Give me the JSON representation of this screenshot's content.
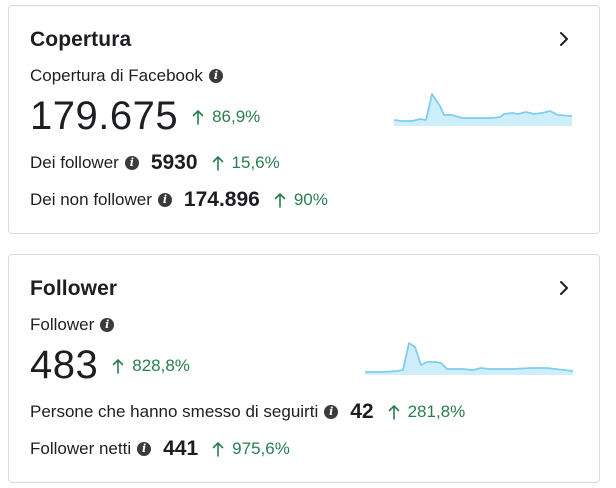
{
  "reach": {
    "title": "Copertura",
    "main_label": "Copertura di Facebook",
    "main_value": "179.675",
    "main_delta": "86,9%",
    "rows": [
      {
        "label": "Dei follower",
        "value": "5930",
        "delta": "15,6%"
      },
      {
        "label": "Dei non follower",
        "value": "174.896",
        "delta": "90%"
      }
    ]
  },
  "followers": {
    "title": "Follower",
    "main_label": "Follower",
    "main_value": "483",
    "main_delta": "828,8%",
    "rows": [
      {
        "label": "Persone che hanno smesso di seguirti",
        "value": "42",
        "delta": "281,8%"
      },
      {
        "label": "Follower netti",
        "value": "441",
        "delta": "975,6%"
      }
    ]
  },
  "colors": {
    "positive": "#2a7d4f",
    "spark_line": "#7fcdf0",
    "spark_fill": "#cfeefb"
  },
  "icons": {
    "info": "info-icon",
    "chevron": "chevron-right-icon",
    "arrow": "arrow-up-icon"
  }
}
